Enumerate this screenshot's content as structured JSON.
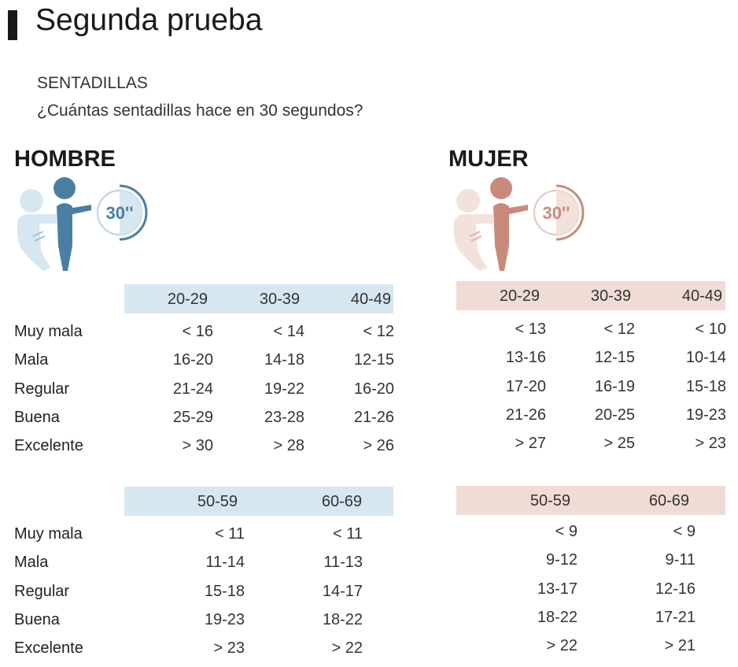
{
  "title": "Segunda prueba",
  "subtitle": "SENTADILLAS",
  "question": "¿Cuántas sentadillas hace en 30 segundos?",
  "colors": {
    "men_accent": "#4a7fa3",
    "men_light": "#d7e7f1",
    "women_accent": "#c98a7c",
    "women_light": "#efdcd5"
  },
  "men": {
    "label": "HOMBRE",
    "timer_label": "30''",
    "tables": [
      {
        "ages": [
          "20-29",
          "30-39",
          "40-49"
        ],
        "rows": [
          {
            "label": "Muy mala",
            "values": [
              "< 16",
              "< 14",
              "< 12"
            ]
          },
          {
            "label": "Mala",
            "values": [
              "16-20",
              "14-18",
              "12-15"
            ]
          },
          {
            "label": "Regular",
            "values": [
              "21-24",
              "19-22",
              "16-20"
            ]
          },
          {
            "label": "Buena",
            "values": [
              "25-29",
              "23-28",
              "21-26"
            ]
          },
          {
            "label": "Excelente",
            "values": [
              "> 30",
              "> 28",
              "> 26"
            ]
          }
        ]
      },
      {
        "ages": [
          "50-59",
          "60-69"
        ],
        "rows": [
          {
            "label": "Muy mala",
            "values": [
              "< 11",
              "< 11"
            ]
          },
          {
            "label": "Mala",
            "values": [
              "11-14",
              "11-13"
            ]
          },
          {
            "label": "Regular",
            "values": [
              "15-18",
              "14-17"
            ]
          },
          {
            "label": "Buena",
            "values": [
              "19-23",
              "18-22"
            ]
          },
          {
            "label": "Excelente",
            "values": [
              "> 23",
              "> 22"
            ]
          }
        ]
      }
    ]
  },
  "women": {
    "label": "MUJER",
    "timer_label": "30''",
    "tables": [
      {
        "ages": [
          "20-29",
          "30-39",
          "40-49"
        ],
        "rows": [
          {
            "values": [
              "< 13",
              "< 12",
              "< 10"
            ]
          },
          {
            "values": [
              "13-16",
              "12-15",
              "10-14"
            ]
          },
          {
            "values": [
              "17-20",
              "16-19",
              "15-18"
            ]
          },
          {
            "values": [
              "21-26",
              "20-25",
              "19-23"
            ]
          },
          {
            "values": [
              "> 27",
              "> 25",
              "> 23"
            ]
          }
        ]
      },
      {
        "ages": [
          "50-59",
          "60-69"
        ],
        "rows": [
          {
            "values": [
              "< 9",
              "< 9"
            ]
          },
          {
            "values": [
              "9-12",
              "9-11"
            ]
          },
          {
            "values": [
              "13-17",
              "12-16"
            ]
          },
          {
            "values": [
              "18-22",
              "17-21"
            ]
          },
          {
            "values": [
              "> 22",
              "> 21"
            ]
          }
        ]
      }
    ]
  }
}
